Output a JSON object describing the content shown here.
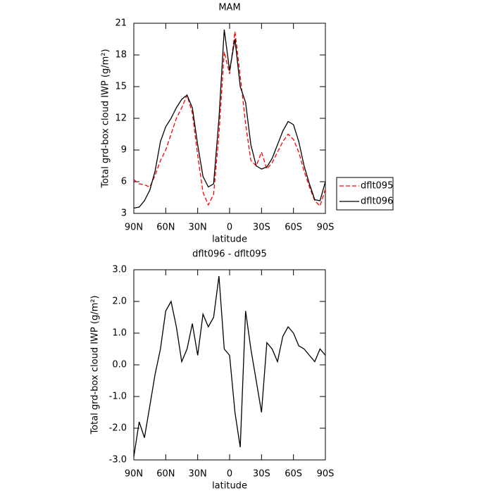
{
  "chart_data": [
    {
      "type": "line",
      "title": "MAM",
      "x_label": "latitude",
      "y_label": "Total grd-box cloud IWP (g/m²)",
      "x": [
        90,
        85,
        80,
        75,
        70,
        65,
        60,
        55,
        50,
        45,
        40,
        35,
        30,
        25,
        20,
        15,
        10,
        5,
        0,
        -5,
        -10,
        -15,
        -20,
        -25,
        -30,
        -35,
        -40,
        -45,
        -50,
        -55,
        -60,
        -65,
        -70,
        -75,
        -80,
        -85,
        -90
      ],
      "series": [
        {
          "name": "dflt095",
          "color": "#ff0000",
          "linestyle": "dashed",
          "values": [
            6.2,
            5.8,
            5.7,
            5.5,
            6.6,
            8.0,
            9.0,
            10.5,
            12.0,
            13.0,
            14.2,
            12.5,
            8.5,
            5.0,
            3.8,
            4.8,
            10.5,
            18.3,
            16.2,
            20.2,
            16.0,
            11.5,
            8.0,
            7.5,
            8.8,
            7.2,
            7.8,
            8.8,
            9.8,
            10.5,
            10.0,
            8.8,
            7.0,
            5.5,
            4.2,
            3.7,
            5.3
          ]
        },
        {
          "name": "dflt096",
          "color": "#000000",
          "linestyle": "solid",
          "values": [
            3.5,
            3.6,
            4.2,
            5.2,
            7.0,
            9.8,
            11.2,
            12.0,
            13.0,
            13.8,
            14.2,
            13.0,
            9.5,
            6.5,
            5.5,
            5.8,
            12.0,
            20.4,
            16.5,
            19.5,
            15.0,
            13.5,
            9.5,
            7.5,
            7.2,
            7.4,
            8.2,
            9.5,
            10.8,
            11.7,
            11.4,
            9.8,
            7.5,
            5.8,
            4.3,
            4.2,
            6.0
          ]
        }
      ],
      "xlim": [
        90,
        -90
      ],
      "xticks": [
        {
          "value": 90,
          "label": "90N"
        },
        {
          "value": 60,
          "label": "60N"
        },
        {
          "value": 30,
          "label": "30N"
        },
        0,
        {
          "value": -30,
          "label": "30S"
        },
        {
          "value": -60,
          "label": "60S"
        },
        {
          "value": -90,
          "label": "90S"
        }
      ],
      "ylim": [
        3,
        21
      ],
      "yticks": [
        3,
        6,
        9,
        12,
        15,
        18,
        21
      ],
      "legend": "right"
    },
    {
      "type": "line",
      "title": "dflt096 - dflt095",
      "x_label": "latitude",
      "y_label": "Total grd-box cloud IWP (g/m²)",
      "x": [
        90,
        85,
        80,
        75,
        70,
        65,
        60,
        55,
        50,
        45,
        40,
        35,
        30,
        25,
        20,
        15,
        10,
        5,
        0,
        -5,
        -10,
        -15,
        -20,
        -25,
        -30,
        -35,
        -40,
        -45,
        -50,
        -55,
        -60,
        -65,
        -70,
        -75,
        -80,
        -85,
        -90
      ],
      "color": "#000000",
      "values": [
        -2.9,
        -1.8,
        -2.3,
        -1.3,
        -0.3,
        0.5,
        1.7,
        2.0,
        1.2,
        0.1,
        0.5,
        1.3,
        0.3,
        1.6,
        1.2,
        1.5,
        2.8,
        0.5,
        0.3,
        -1.5,
        -2.6,
        1.7,
        0.5,
        -0.5,
        -1.5,
        0.7,
        0.5,
        0.1,
        0.9,
        1.2,
        1.0,
        0.6,
        0.5,
        0.3,
        0.1,
        0.5,
        0.3
      ],
      "xlim": [
        90,
        -90
      ],
      "xticks": [
        {
          "value": 90,
          "label": "90N"
        },
        {
          "value": 60,
          "label": "60N"
        },
        {
          "value": 30,
          "label": "30N"
        },
        0,
        {
          "value": -30,
          "label": "30S"
        },
        {
          "value": -60,
          "label": "60S"
        },
        {
          "value": -90,
          "label": "90S"
        }
      ],
      "ylim": [
        -3,
        3
      ],
      "yticks": [
        {
          "value": -3,
          "label": "-3.0"
        },
        {
          "value": -2,
          "label": "-2.0"
        },
        {
          "value": -1,
          "label": "-1.0"
        },
        {
          "value": 0,
          "label": "0.0"
        },
        {
          "value": 1,
          "label": "1.0"
        },
        {
          "value": 2,
          "label": "2.0"
        },
        {
          "value": 3,
          "label": "3.0"
        }
      ]
    }
  ]
}
